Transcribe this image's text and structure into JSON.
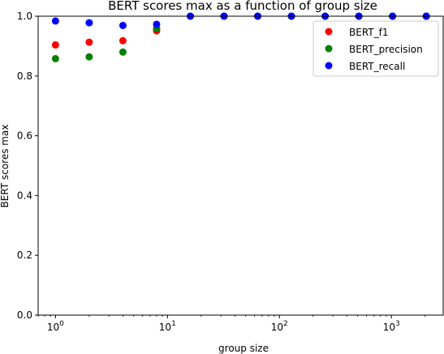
{
  "chart_data": {
    "type": "scatter",
    "title": "BERT scores max as a function of group size",
    "xlabel": "group size",
    "ylabel": "BERT scores max",
    "xscale": "log",
    "xlim": [
      0.7,
      2900
    ],
    "ylim": [
      0.0,
      1.0
    ],
    "grid": false,
    "legend_position": "top-right",
    "x": [
      1,
      2,
      4,
      8,
      16,
      32,
      64,
      128,
      256,
      512,
      1024,
      2048
    ],
    "series": [
      {
        "name": "BERT_f1",
        "color": "#ff0000",
        "values": [
          0.904,
          0.913,
          0.918,
          0.951,
          1.0,
          1.0,
          1.0,
          1.0,
          1.0,
          1.0,
          1.0,
          1.0
        ]
      },
      {
        "name": "BERT_precision",
        "color": "#008000",
        "values": [
          0.858,
          0.864,
          0.88,
          0.959,
          1.0,
          1.0,
          1.0,
          1.0,
          1.0,
          1.0,
          1.0,
          1.0
        ]
      },
      {
        "name": "BERT_recall",
        "color": "#0000ff",
        "values": [
          0.984,
          0.978,
          0.969,
          0.973,
          1.0,
          1.0,
          1.0,
          1.0,
          1.0,
          1.0,
          1.0,
          1.0
        ]
      }
    ],
    "yticks": [
      "0.0",
      "0.2",
      "0.4",
      "0.6",
      "0.8",
      "1.0"
    ],
    "xticks": [
      {
        "base": "10",
        "exp": "0"
      },
      {
        "base": "10",
        "exp": "1"
      },
      {
        "base": "10",
        "exp": "2"
      },
      {
        "base": "10",
        "exp": "3"
      }
    ]
  }
}
